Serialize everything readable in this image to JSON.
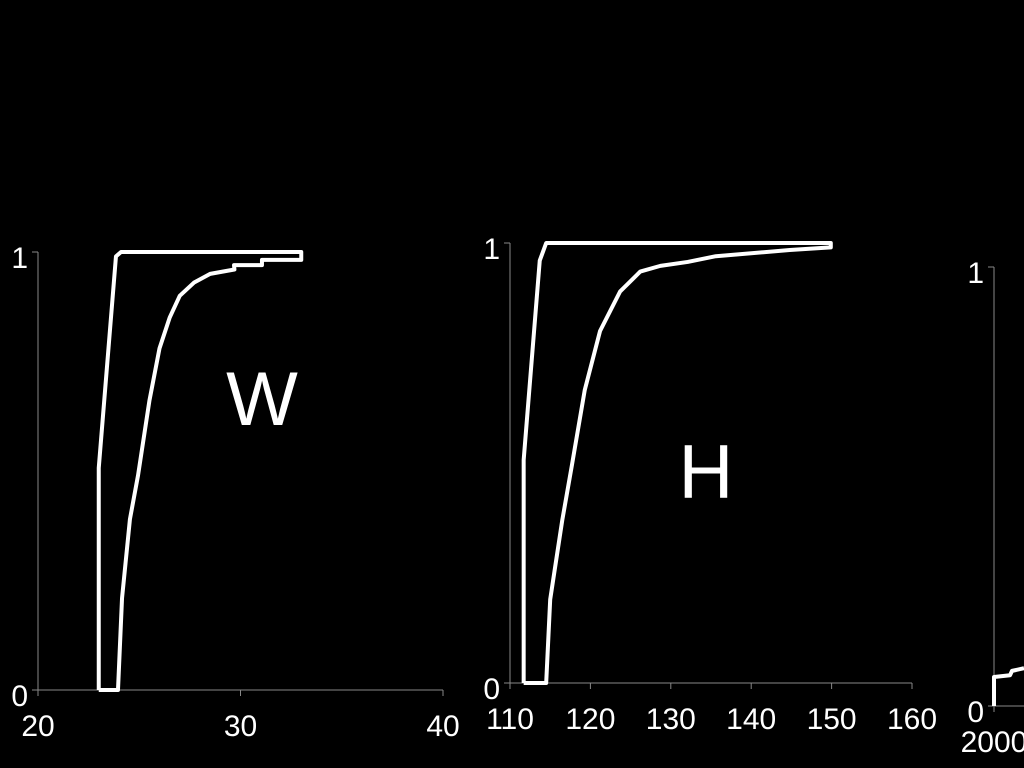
{
  "chart_data": [
    {
      "type": "line",
      "annotation": "W",
      "xlim": [
        20,
        40
      ],
      "ylim": [
        0,
        1
      ],
      "xticks": [
        20,
        30,
        40
      ],
      "yticks": [
        0,
        1
      ],
      "series": [
        {
          "color": "#ffffff",
          "x": [
            23.0,
            23.0,
            23.85,
            24.1,
            33.0,
            33.0,
            31.06,
            31.06,
            29.68,
            29.7,
            28.5,
            27.7,
            27.0,
            26.5,
            26.0,
            25.5,
            24.94,
            24.54,
            24.15,
            23.95,
            23.0
          ],
          "values": [
            0,
            0.507,
            0.99,
            1,
            1,
            0.982,
            0.982,
            0.97,
            0.97,
            0.96,
            0.95,
            0.93,
            0.9,
            0.85,
            0.78,
            0.66,
            0.49,
            0.39,
            0.21,
            0,
            0
          ]
        }
      ]
    },
    {
      "type": "line",
      "annotation": "H",
      "xlim": [
        110,
        160
      ],
      "ylim": [
        0,
        1
      ],
      "xticks": [
        110,
        120,
        130,
        140,
        150,
        160
      ],
      "yticks": [
        0,
        1
      ],
      "series": [
        {
          "color": "#ffffff",
          "x": [
            111.7,
            111.7,
            113.7,
            114.5,
            149.9,
            149.9,
            144.8,
            135.6,
            132.1,
            128.7,
            126.2,
            123.7,
            121.2,
            119.3,
            117.7,
            116.5,
            115.0,
            114.5,
            111.7
          ],
          "values": [
            0,
            0.507,
            0.96,
            1,
            1,
            0.99,
            0.984,
            0.97,
            0.957,
            0.948,
            0.935,
            0.89,
            0.8,
            0.666,
            0.495,
            0.37,
            0.19,
            0,
            0
          ]
        }
      ]
    },
    {
      "type": "line",
      "xlim": [
        2000,
        3000
      ],
      "ylim": [
        0,
        1
      ],
      "xticks": [
        2000
      ],
      "yticks": [
        0,
        1
      ],
      "series": [
        {
          "color": "#ffffff",
          "x": [
            2000,
            2000,
            2040,
            2045,
            2075
          ],
          "values": [
            0,
            0.066,
            0.07,
            0.08,
            0.086
          ]
        }
      ]
    }
  ]
}
